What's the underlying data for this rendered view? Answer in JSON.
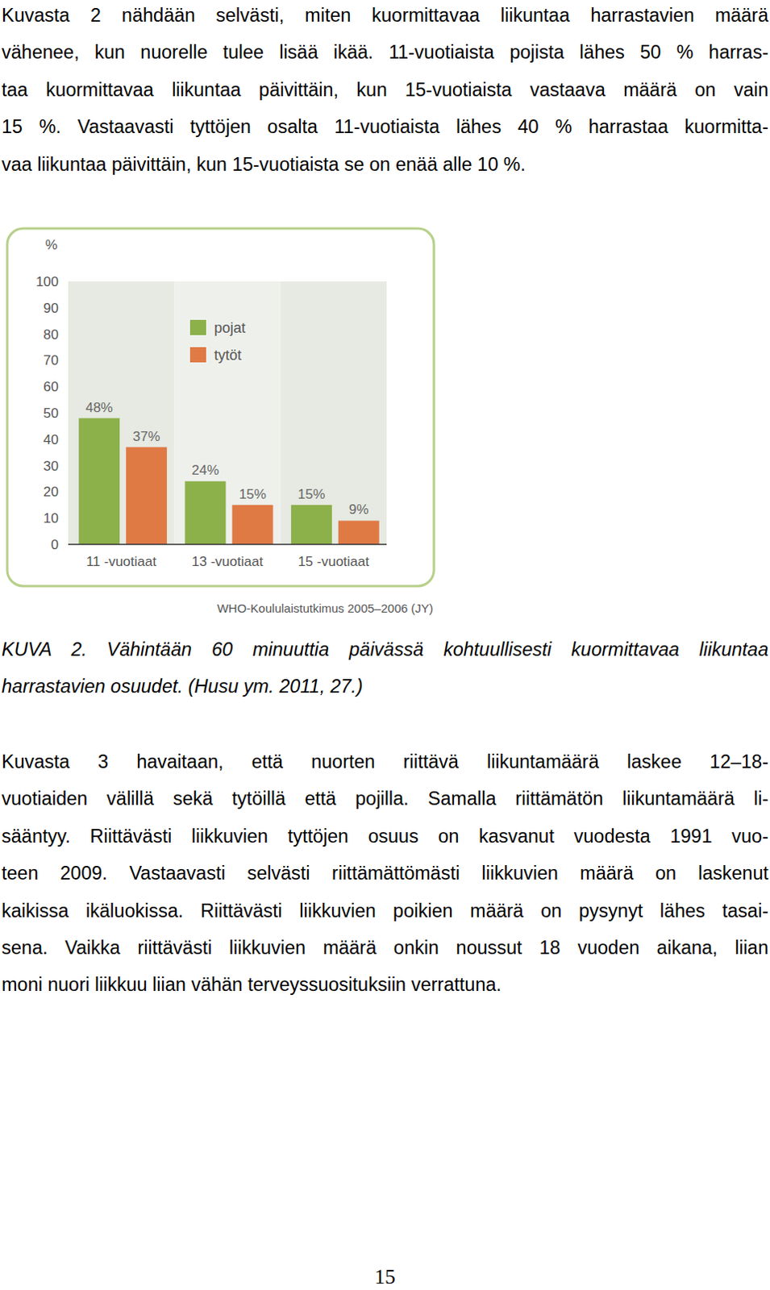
{
  "text_before": {
    "lines": [
      "Kuvasta 2 nähdään selvästi, miten kuormittavaa liikuntaa harrastavien määrä",
      "vähenee, kun nuorelle tulee lisää ikää. 11-vuotiaista pojista lähes 50 % harras-",
      "taa kuormittavaa liikuntaa päivittäin, kun 15-vuotiaista vastaava määrä on vain",
      "15 %. Vastaavasti tyttöjen osalta 11-vuotiaista lähes 40 % harrastaa kuormitta-",
      "vaa liikuntaa päivittäin, kun 15-vuotiaista se on enää alle 10 %."
    ]
  },
  "chart_data": {
    "type": "bar",
    "y_label": "%",
    "categories": [
      "11 -vuotiaat",
      "13 -vuotiaat",
      "15 -vuotiaat"
    ],
    "series": [
      {
        "name": "pojat",
        "color": "#8cb04a",
        "values": [
          48,
          24,
          15
        ],
        "value_labels": [
          "48%",
          "24%",
          "15%"
        ]
      },
      {
        "name": "tytöt",
        "color": "#e07a45",
        "values": [
          37,
          15,
          9
        ],
        "value_labels": [
          "37%",
          "15%",
          "9%"
        ]
      }
    ],
    "ylim": [
      0,
      100
    ],
    "yticks": [
      0,
      10,
      20,
      30,
      40,
      50,
      60,
      70,
      80,
      90,
      100
    ],
    "grid": false,
    "legend": "top",
    "data_labels": true,
    "source": "WHO-Koululaistutkimus 2005–2006 (JY)"
  },
  "caption": {
    "lines": [
      "KUVA 2. Vähintään 60 minuuttia päivässä kohtuullisesti kuormittavaa liikuntaa",
      "harrastavien osuudet. (Husu ym. 2011, 27.)"
    ]
  },
  "text_after": {
    "lines": [
      "Kuvasta 3 havaitaan, että nuorten riittävä liikuntamäärä laskee 12–18-",
      "vuotiaiden välillä sekä tytöillä että pojilla. Samalla riittämätön liikuntamäärä li-",
      "sääntyy. Riittävästi liikkuvien tyttöjen osuus on kasvanut vuodesta 1991 vuo-",
      "teen 2009. Vastaavasti selvästi riittämättömästi liikkuvien määrä on laskenut",
      "kaikissa ikäluokissa. Riittävästi liikkuvien poikien määrä on pysynyt lähes tasai-",
      "sena. Vaikka riittävästi liikkuvien määrä onkin noussut 18 vuoden aikana, liian",
      "moni nuori liikkuu liian vähän terveyssuosituksiin verrattuna."
    ]
  },
  "page_number": "15"
}
